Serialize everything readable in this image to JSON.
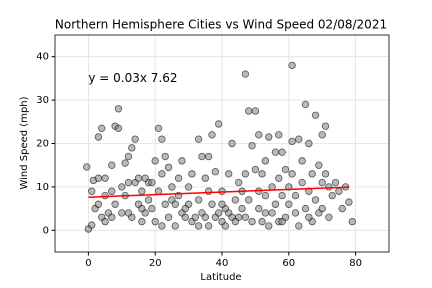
{
  "chart_data": {
    "type": "scatter",
    "title": "Northern Hemisphere Cities vs Wind Speed 02/08/2021",
    "xlabel": "Latitude",
    "ylabel": "Wind Speed (mph)",
    "annotation": "y = 0.03x 7.62",
    "annotation_x": 0,
    "annotation_y": 35,
    "annotation_color": "#ff0000",
    "x": [
      -0.5,
      0,
      1,
      1,
      1.5,
      2,
      3,
      3,
      4,
      4,
      5,
      5,
      5,
      6,
      7,
      7,
      8,
      8,
      9,
      9,
      10,
      10,
      11,
      11,
      12,
      12,
      13,
      13,
      14,
      14,
      15,
      15,
      16,
      16,
      17,
      17,
      18,
      18,
      19,
      20,
      20,
      21,
      21,
      22,
      22,
      22,
      23,
      23,
      24,
      24,
      25,
      25,
      26,
      26,
      27,
      28,
      28,
      29,
      30,
      30,
      31,
      31,
      32,
      33,
      33,
      34,
      34,
      35,
      35,
      36,
      36,
      37,
      37,
      38,
      38,
      39,
      39,
      40,
      40,
      41,
      41,
      42,
      42,
      43,
      43,
      44,
      45,
      45,
      46,
      47,
      47,
      47,
      48,
      48,
      49,
      49,
      50,
      50,
      51,
      51,
      52,
      52,
      53,
      53,
      54,
      54,
      55,
      55,
      56,
      56,
      57,
      57,
      57,
      58,
      58,
      59,
      59,
      60,
      60,
      61,
      61,
      61,
      62,
      62,
      63,
      63,
      64,
      64,
      65,
      65,
      66,
      66,
      67,
      67,
      68,
      68,
      69,
      69,
      70,
      70,
      71,
      71,
      72,
      72,
      73,
      74,
      75,
      76,
      77,
      78,
      79,
      16,
      19,
      27,
      44,
      46,
      51,
      53,
      12,
      7,
      3,
      33,
      29,
      36,
      40,
      58,
      66,
      70
    ],
    "values": [
      14.6,
      0.3,
      9,
      1.2,
      11.5,
      5,
      21.5,
      12,
      23.5,
      3,
      2,
      8,
      12,
      4,
      15,
      3,
      24,
      6,
      23.5,
      28,
      10,
      4,
      15.5,
      8,
      17,
      11,
      19,
      3,
      21,
      11,
      12,
      6,
      9,
      2,
      12,
      4,
      7,
      11,
      5,
      16,
      2,
      23.5,
      9,
      21,
      13,
      1,
      17,
      6,
      14.5,
      3,
      10,
      7,
      1,
      6,
      8,
      16,
      4,
      3,
      10,
      6,
      2,
      13,
      3,
      21,
      7,
      17,
      4,
      12,
      3,
      17,
      1,
      22,
      6,
      13.5,
      3,
      24.5,
      4,
      9,
      2,
      1,
      5,
      4,
      13,
      20,
      3,
      7,
      3,
      11,
      5,
      36,
      13,
      3,
      27.5,
      7,
      19.5,
      2,
      27.5,
      14,
      22,
      5,
      13,
      2,
      16,
      8,
      21.5,
      1,
      10,
      4,
      18,
      6,
      22,
      12,
      2,
      8,
      18,
      14,
      3,
      10,
      6,
      38,
      20.5,
      13,
      4,
      8,
      21,
      1,
      11,
      16,
      29,
      5,
      20,
      9,
      13,
      2,
      26.5,
      7,
      4,
      15,
      22,
      11,
      24,
      13,
      3,
      10,
      8,
      11,
      9,
      5,
      10,
      6.5,
      2,
      5,
      11,
      12,
      2,
      9,
      9,
      4,
      4,
      9,
      6,
      1,
      5,
      9,
      6,
      2,
      3,
      5
    ],
    "color": "#7f7f7f",
    "fit": {
      "x": [
        0,
        78
      ],
      "values": [
        7.62,
        9.96
      ],
      "color": "#ff0000"
    },
    "xlim": [
      -10,
      90
    ],
    "ylim": [
      -5,
      45
    ],
    "xticks": [
      0,
      20,
      40,
      60,
      80
    ],
    "yticks": [
      0,
      10,
      20,
      30,
      40
    ],
    "grid": true
  }
}
